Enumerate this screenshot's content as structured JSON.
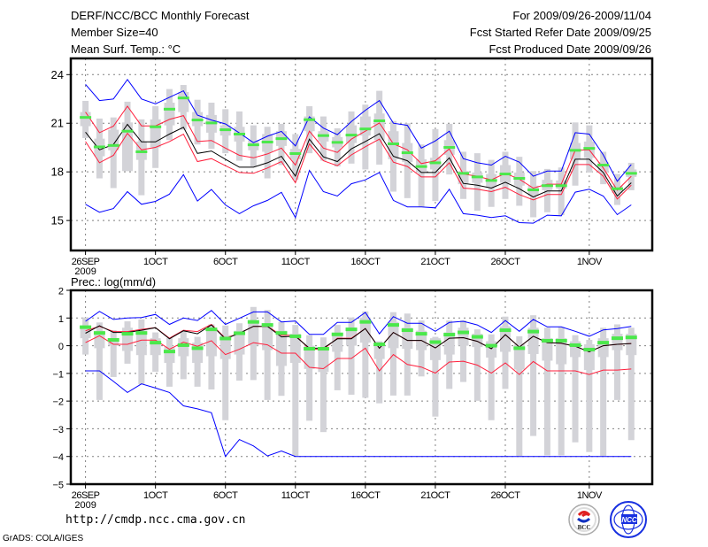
{
  "header": {
    "title": "DERF/NCC/BCC Monthly Forecast",
    "member_size": "Member Size=40",
    "variable": "Mean Surf. Temp.: °C",
    "period": "For 2009/09/26-2009/11/04",
    "fcst_started": "Fcst Started Refer Date 2009/09/25",
    "fcst_produced": "Fcst Produced Date 2009/09/26"
  },
  "footer": {
    "url": "http://cmdp.ncc.cma.gov.cn",
    "credit": "GrADS: COLA/IGES",
    "logos": [
      "BCC",
      "NCC"
    ]
  },
  "colors": {
    "ensemble_extreme": "#0000ff",
    "ensemble_spread": "#ff1f3c",
    "ensemble_mean": "#000000",
    "range_bar": "#d3d3d8",
    "marker": "#4be84b",
    "grid": "#808080"
  },
  "chart_data": [
    {
      "type": "line",
      "title": "Mean Surf. Temp.: °C",
      "x_start": "2009-09-26",
      "n_days": 40,
      "xlim": [
        -1.05,
        40.5
      ],
      "ylim": [
        13.15,
        25.0
      ],
      "yticks": [
        "15",
        "18",
        "21",
        "24"
      ],
      "ytick_values": [
        15,
        18,
        21,
        24
      ],
      "xticks": [
        "26SEP",
        "1OCT",
        "6OCT",
        "11OCT",
        "16OCT",
        "21OCT",
        "26OCT",
        "1NOV"
      ],
      "xtick_days": [
        0,
        5,
        10,
        15,
        20,
        25,
        30,
        36
      ],
      "xtick_sub": "2009",
      "grid": true,
      "series": {
        "blue_hi": [
          23.4,
          22.4,
          22.5,
          23.7,
          22.5,
          22.2,
          22.6,
          23.0,
          21.5,
          21.2,
          20.96,
          20.4,
          19.8,
          20.2,
          20.5,
          19.6,
          21.4,
          20.7,
          20.3,
          21.1,
          21.8,
          22.4,
          21.0,
          20.87,
          19.47,
          19.91,
          20.51,
          18.82,
          18.56,
          18.42,
          18.96,
          18.6,
          17.73,
          18.05,
          18.05,
          20.42,
          20.33,
          19.05,
          17.42,
          18.45
        ],
        "red_hi": [
          21.69,
          20.42,
          20.82,
          22.05,
          20.84,
          20.84,
          21.24,
          21.47,
          19.87,
          19.94,
          19.47,
          19.02,
          18.87,
          19.11,
          19.47,
          18.42,
          20.51,
          19.47,
          19.2,
          20.02,
          20.51,
          21.02,
          19.73,
          19.36,
          18.51,
          18.69,
          19.42,
          17.87,
          17.73,
          17.51,
          17.91,
          17.55,
          17.0,
          17.24,
          17.24,
          19.33,
          19.36,
          18.24,
          16.87,
          17.73
        ],
        "mean": [
          20.45,
          19.36,
          19.69,
          20.93,
          19.85,
          19.85,
          20.33,
          20.75,
          19.14,
          19.29,
          18.78,
          18.29,
          18.29,
          18.56,
          18.96,
          17.74,
          20.02,
          18.93,
          18.64,
          19.42,
          19.87,
          20.36,
          18.96,
          18.69,
          17.96,
          17.96,
          18.87,
          17.29,
          17.18,
          17.0,
          17.36,
          16.96,
          16.45,
          16.82,
          16.82,
          18.78,
          18.78,
          17.96,
          16.51,
          17.33
        ],
        "red_lo": [
          19.87,
          18.56,
          19.02,
          20.38,
          19.36,
          19.51,
          19.87,
          20.33,
          18.64,
          18.82,
          18.38,
          17.96,
          17.91,
          18.24,
          18.64,
          17.33,
          19.73,
          18.69,
          18.38,
          19.05,
          19.55,
          20.02,
          18.6,
          18.33,
          17.69,
          17.69,
          18.56,
          17.0,
          16.93,
          16.78,
          17.05,
          16.6,
          16.27,
          16.6,
          16.6,
          18.45,
          18.45,
          17.73,
          16.33,
          17.18
        ],
        "blue_lo": [
          16.0,
          15.51,
          15.74,
          16.78,
          16.0,
          16.18,
          16.63,
          17.83,
          16.2,
          16.91,
          15.96,
          15.42,
          15.91,
          16.24,
          16.74,
          15.18,
          18.09,
          16.78,
          16.51,
          17.27,
          17.51,
          17.96,
          16.24,
          15.84,
          15.84,
          15.78,
          16.93,
          15.42,
          15.33,
          15.18,
          15.29,
          14.87,
          14.84,
          15.33,
          15.29,
          16.75,
          16.93,
          16.51,
          15.36,
          15.96
        ],
        "marker": [
          21.36,
          19.54,
          19.63,
          20.51,
          19.24,
          20.78,
          21.87,
          22.56,
          21.2,
          21.02,
          20.6,
          20.33,
          19.67,
          19.84,
          20.05,
          19.13,
          21.22,
          20.24,
          19.82,
          20.27,
          20.65,
          21.15,
          19.73,
          19.18,
          18.33,
          18.56,
          19.51,
          17.91,
          17.69,
          17.47,
          17.87,
          17.6,
          16.89,
          17.15,
          17.15,
          19.33,
          19.45,
          18.42,
          16.96,
          17.91
        ],
        "range_top": [
          22.38,
          21.29,
          21.36,
          22.33,
          21.24,
          22.05,
          23.11,
          23.36,
          22.45,
          22.27,
          21.87,
          21.73,
          20.87,
          20.78,
          20.96,
          20.33,
          22.05,
          21.42,
          20.69,
          21.73,
          22.15,
          23.0,
          21.14,
          21.0,
          19.69,
          20.64,
          20.96,
          19.24,
          19.15,
          18.74,
          19.24,
          18.93,
          18.05,
          18.18,
          18.27,
          21.05,
          20.87,
          19.24,
          17.87,
          18.56
        ],
        "range_bottom": [
          20.09,
          17.6,
          17.0,
          18.05,
          16.56,
          18.24,
          19.96,
          20.6,
          19.69,
          19.42,
          19.15,
          18.69,
          18.33,
          17.6,
          18.42,
          17.51,
          19.15,
          18.69,
          18.33,
          18.51,
          18.15,
          18.45,
          16.78,
          16.38,
          15.84,
          16.2,
          17.84,
          16.33,
          15.6,
          15.84,
          16.33,
          15.91,
          15.2,
          15.51,
          15.33,
          17.15,
          17.96,
          17.24,
          15.96,
          16.87
        ],
        "box_top": [
          21.69,
          20.05,
          20.6,
          21.05,
          19.87,
          21.24,
          22.27,
          22.93,
          21.69,
          21.51,
          20.87,
          20.78,
          19.96,
          20.33,
          20.51,
          19.42,
          21.42,
          20.51,
          20.15,
          20.87,
          21.42,
          21.6,
          20.51,
          19.78,
          18.78,
          18.87,
          19.96,
          18.05,
          17.96,
          17.87,
          18.42,
          17.96,
          17.15,
          17.51,
          17.47,
          19.78,
          19.87,
          18.6,
          17.15,
          18.15
        ],
        "box_bottom": [
          20.82,
          18.96,
          19.33,
          18.05,
          18.74,
          19.51,
          20.87,
          21.69,
          20.82,
          20.42,
          20.24,
          19.87,
          19.33,
          19.24,
          19.6,
          18.78,
          20.51,
          19.87,
          19.51,
          19.78,
          20.24,
          19.96,
          18.78,
          18.6,
          17.96,
          18.15,
          19.05,
          17.24,
          17.33,
          17.05,
          17.33,
          17.15,
          16.51,
          16.87,
          16.96,
          18.78,
          18.87,
          17.96,
          16.69,
          17.69
        ]
      }
    },
    {
      "type": "line",
      "title": "Prec.: log(mm/d)",
      "x_start": "2009-09-26",
      "n_days": 40,
      "xlim": [
        -1.05,
        40.5
      ],
      "ylim": [
        -5,
        2
      ],
      "yticks": [
        "−5",
        "−4",
        "−3",
        "−2",
        "−1",
        "0",
        "1",
        "2"
      ],
      "ytick_values": [
        -5,
        -4,
        -3,
        -2,
        -1,
        0,
        1,
        2
      ],
      "xticks": [
        "26SEP",
        "1OCT",
        "6OCT",
        "11OCT",
        "16OCT",
        "21OCT",
        "26OCT",
        "1NOV"
      ],
      "xtick_days": [
        0,
        5,
        10,
        15,
        20,
        25,
        30,
        36
      ],
      "xtick_sub": "2009",
      "grid": true,
      "series": {
        "blue_hi": [
          0.88,
          1.24,
          0.95,
          1.0,
          1.02,
          1.13,
          0.77,
          1.0,
          0.91,
          1.27,
          0.77,
          0.99,
          1.22,
          1.22,
          0.86,
          0.89,
          0.41,
          0.41,
          0.84,
          0.84,
          1.2,
          0.43,
          1.05,
          0.81,
          0.81,
          0.52,
          0.84,
          0.88,
          0.75,
          0.48,
          0.91,
          0.52,
          0.95,
          0.68,
          0.68,
          0.52,
          0.34,
          0.57,
          0.62,
          0.7
        ],
        "red_hi": [
          0.54,
          0.7,
          0.51,
          0.51,
          0.59,
          0.65,
          0.27,
          0.56,
          0.51,
          0.77,
          0.27,
          0.45,
          0.7,
          0.7,
          0.38,
          0.38,
          -0.13,
          -0.13,
          0.27,
          0.27,
          0.62,
          -0.09,
          0.48,
          0.19,
          0.19,
          -0.08,
          0.27,
          0.29,
          0.16,
          -0.11,
          0.4,
          -0.05,
          0.34,
          0.11,
          0.09,
          -0.02,
          -0.22,
          0.0,
          0.05,
          0.08
        ],
        "mean": [
          0.45,
          0.72,
          0.48,
          0.48,
          0.56,
          0.65,
          0.25,
          0.54,
          0.43,
          0.75,
          0.25,
          0.45,
          0.7,
          0.7,
          0.32,
          0.34,
          -0.09,
          -0.09,
          0.25,
          0.25,
          0.62,
          -0.09,
          0.48,
          0.19,
          0.19,
          -0.08,
          0.27,
          0.29,
          0.16,
          -0.11,
          0.4,
          -0.05,
          0.34,
          0.11,
          0.09,
          -0.02,
          -0.22,
          0.0,
          0.05,
          0.08
        ],
        "red_lo": [
          0.11,
          0.36,
          0.05,
          0.05,
          0.2,
          0.2,
          -0.13,
          0.13,
          -0.02,
          0.18,
          -0.32,
          -0.13,
          0.11,
          0.03,
          -0.27,
          -0.27,
          -0.78,
          -0.83,
          -0.46,
          -0.46,
          -0.09,
          -0.91,
          -0.32,
          -0.68,
          -0.77,
          -0.99,
          -0.59,
          -0.56,
          -0.7,
          -0.99,
          -0.62,
          -1.04,
          -0.57,
          -0.91,
          -0.91,
          -0.91,
          -1.04,
          -0.88,
          -0.88,
          -0.84
        ],
        "blue_lo": [
          -0.91,
          -0.91,
          -1.29,
          -1.69,
          -1.38,
          -1.53,
          -1.69,
          -2.17,
          -2.28,
          -2.42,
          -4.0,
          -3.39,
          -3.62,
          -3.98,
          -3.8,
          -4.0,
          -4.0,
          -4.0,
          -4.0,
          -4.0,
          -4.0,
          -4.0,
          -4.0,
          -4.0,
          -4.0,
          -4.0,
          -4.0,
          -4.0,
          -4.0,
          -4.0,
          -4.0,
          -4.0,
          -4.0,
          -4.0,
          -4.0,
          -4.0,
          -4.0,
          -4.0,
          -4.0,
          -4.0
        ],
        "marker": [
          0.67,
          0.46,
          0.21,
          0.43,
          0.46,
          0.11,
          -0.21,
          0.02,
          -0.09,
          0.59,
          0.26,
          0.45,
          0.86,
          0.75,
          0.46,
          0.34,
          -0.11,
          -0.11,
          0.41,
          0.59,
          0.86,
          0.05,
          0.75,
          0.56,
          0.43,
          0.13,
          0.4,
          0.48,
          0.32,
          0.0,
          0.56,
          -0.09,
          0.51,
          0.18,
          0.18,
          0.02,
          -0.14,
          0.11,
          0.27,
          0.3
        ],
        "range_top": [
          1.02,
          0.84,
          0.56,
          0.88,
          0.95,
          0.48,
          0.27,
          0.52,
          0.32,
          0.77,
          0.73,
          0.81,
          1.4,
          1.29,
          0.86,
          0.75,
          0.38,
          0.3,
          0.75,
          1.02,
          1.24,
          0.16,
          1.21,
          1.16,
          0.91,
          0.32,
          0.91,
          0.91,
          0.59,
          0.41,
          1.05,
          0.34,
          1.1,
          0.65,
          0.67,
          0.38,
          0.21,
          0.65,
          0.77,
          0.65
        ],
        "range_bottom": [
          -0.32,
          -1.96,
          -1.13,
          -0.65,
          -1.4,
          -0.94,
          -1.48,
          -1.21,
          -1.48,
          -1.58,
          -2.69,
          -1.26,
          -1.24,
          -1.96,
          -1.81,
          -3.98,
          -2.71,
          -3.12,
          -1.61,
          -1.77,
          -1.88,
          -2.08,
          -1.8,
          -1.8,
          -1.11,
          -2.56,
          -1.56,
          -1.31,
          -1.99,
          -2.69,
          -1.56,
          -3.98,
          -3.26,
          -3.96,
          -3.96,
          -3.49,
          -3.84,
          -3.98,
          -1.96,
          -3.41
        ],
        "box_top": [
          0.65,
          0.54,
          0.27,
          0.65,
          0.54,
          0.27,
          -0.05,
          0.27,
          0.11,
          0.65,
          0.38,
          0.54,
          0.86,
          0.81,
          0.54,
          0.43,
          0.0,
          -0.05,
          0.43,
          0.65,
          1.02,
          0.11,
          0.86,
          0.65,
          0.54,
          0.27,
          0.48,
          0.65,
          0.43,
          0.16,
          0.7,
          0.05,
          0.65,
          0.27,
          0.27,
          0.16,
          0.05,
          0.27,
          0.43,
          0.43
        ],
        "box_bottom": [
          0.27,
          -0.09,
          0.0,
          -0.19,
          -0.34,
          -0.34,
          -0.62,
          -0.38,
          -0.62,
          -0.38,
          -0.48,
          -0.32,
          0.0,
          -0.16,
          -0.73,
          -0.62,
          -0.84,
          -0.95,
          -0.22,
          0.0,
          0.11,
          -0.48,
          -0.09,
          -0.11,
          -0.16,
          -0.52,
          -0.32,
          0.0,
          -0.05,
          -0.43,
          -0.22,
          -0.86,
          -0.3,
          -0.54,
          -0.67,
          -0.41,
          -0.88,
          -0.41,
          -0.16,
          -0.34
        ]
      }
    }
  ]
}
